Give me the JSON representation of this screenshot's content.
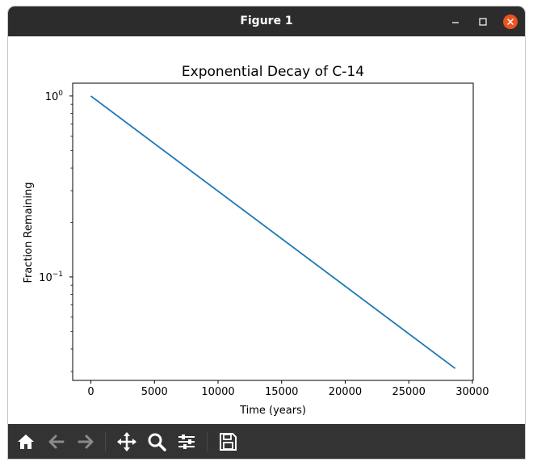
{
  "window": {
    "title": "Figure 1",
    "controls": [
      "minimize-icon",
      "maximize-icon",
      "close-icon"
    ],
    "close_color": "#e95420",
    "titlebar_color": "#2c2c2c"
  },
  "toolbar": {
    "buttons": [
      "home-icon",
      "back-arrow-icon",
      "forward-arrow-icon",
      "pan-icon",
      "zoom-icon",
      "configure-subplots-icon",
      "save-icon"
    ],
    "background": "#333333"
  },
  "chart_data": {
    "type": "line",
    "title": "Exponential Decay of C-14",
    "xlabel": "Time (years)",
    "ylabel": "Fraction Remaining",
    "xscale": "linear",
    "yscale": "log",
    "xlim": [
      -1432,
      30070
    ],
    "ylim": [
      0.0268,
      1.178
    ],
    "xticks": [
      0,
      5000,
      10000,
      15000,
      20000,
      25000,
      30000
    ],
    "xtick_labels": [
      "0",
      "5000",
      "10000",
      "15000",
      "20000",
      "25000",
      "30000"
    ],
    "yticks_major": [
      {
        "value": 1,
        "base": "10",
        "exp": "0"
      },
      {
        "value": 0.1,
        "base": "10",
        "exp": "−1"
      }
    ],
    "grid": false,
    "series": [
      {
        "color": "#1f77b4",
        "x": [
          0,
          28650
        ],
        "y": [
          1.0,
          0.0312
        ]
      }
    ]
  }
}
